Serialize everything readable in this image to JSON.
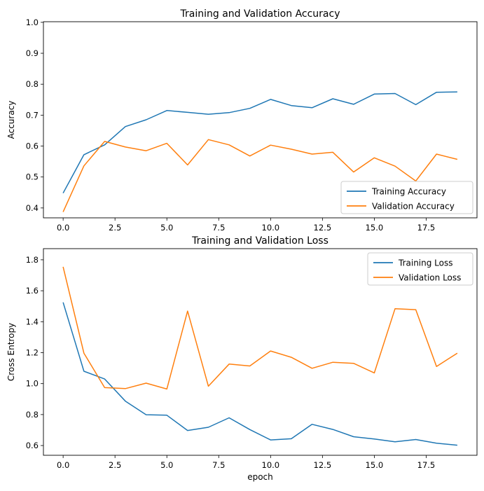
{
  "chart_data": [
    {
      "type": "line",
      "title": "Training and Validation Accuracy",
      "xlabel": "",
      "ylabel": "Accuracy",
      "x": [
        0,
        1,
        2,
        3,
        4,
        5,
        6,
        7,
        8,
        9,
        10,
        11,
        12,
        13,
        14,
        15,
        16,
        17,
        18,
        19
      ],
      "xlim": [
        -0.95,
        19.95
      ],
      "ylim": [
        0.368,
        1.002
      ],
      "xticks": [
        0,
        2.5,
        5,
        7.5,
        10,
        12.5,
        15,
        17.5
      ],
      "xtick_labels": [
        "0.0",
        "2.5",
        "5.0",
        "7.5",
        "10.0",
        "12.5",
        "15.0",
        "17.5"
      ],
      "yticks": [
        0.4,
        0.5,
        0.6,
        0.7,
        0.8,
        0.9,
        1.0
      ],
      "ytick_labels": [
        "0.4",
        "0.5",
        "0.6",
        "0.7",
        "0.8",
        "0.9",
        "1.0"
      ],
      "legend": "lower-right",
      "grid": false,
      "series": [
        {
          "name": "Training Accuracy",
          "color": "#1f77b4",
          "values": [
            0.448,
            0.572,
            0.604,
            0.663,
            0.685,
            0.715,
            0.709,
            0.703,
            0.708,
            0.722,
            0.751,
            0.731,
            0.724,
            0.753,
            0.735,
            0.768,
            0.77,
            0.734,
            0.774,
            0.775
          ]
        },
        {
          "name": "Validation Accuracy",
          "color": "#ff7f0e",
          "values": [
            0.387,
            0.536,
            0.615,
            0.597,
            0.585,
            0.609,
            0.539,
            0.621,
            0.604,
            0.568,
            0.603,
            0.59,
            0.574,
            0.58,
            0.516,
            0.562,
            0.535,
            0.487,
            0.574,
            0.557
          ]
        }
      ]
    },
    {
      "type": "line",
      "title": "Training and Validation Loss",
      "xlabel": "epoch",
      "ylabel": "Cross Entropy",
      "x": [
        0,
        1,
        2,
        3,
        4,
        5,
        6,
        7,
        8,
        9,
        10,
        11,
        12,
        13,
        14,
        15,
        16,
        17,
        18,
        19
      ],
      "xlim": [
        -0.95,
        19.95
      ],
      "ylim": [
        0.537,
        1.872
      ],
      "xticks": [
        0,
        2.5,
        5,
        7.5,
        10,
        12.5,
        15,
        17.5
      ],
      "xtick_labels": [
        "0.0",
        "2.5",
        "5.0",
        "7.5",
        "10.0",
        "12.5",
        "15.0",
        "17.5"
      ],
      "yticks": [
        0.6,
        0.8,
        1.0,
        1.2,
        1.4,
        1.6,
        1.8
      ],
      "ytick_labels": [
        "0.6",
        "0.8",
        "1.0",
        "1.2",
        "1.4",
        "1.6",
        "1.8"
      ],
      "legend": "upper-right",
      "grid": false,
      "series": [
        {
          "name": "Training Loss",
          "color": "#1f77b4",
          "values": [
            1.525,
            1.08,
            1.03,
            0.887,
            0.799,
            0.796,
            0.697,
            0.718,
            0.779,
            0.703,
            0.636,
            0.644,
            0.737,
            0.704,
            0.657,
            0.642,
            0.624,
            0.639,
            0.615,
            0.602
          ]
        },
        {
          "name": "Validation Loss",
          "color": "#ff7f0e",
          "values": [
            1.755,
            1.197,
            0.974,
            0.968,
            1.003,
            0.965,
            1.469,
            0.983,
            1.126,
            1.114,
            1.211,
            1.17,
            1.099,
            1.138,
            1.131,
            1.069,
            1.484,
            1.478,
            1.111,
            1.197
          ]
        }
      ]
    }
  ]
}
